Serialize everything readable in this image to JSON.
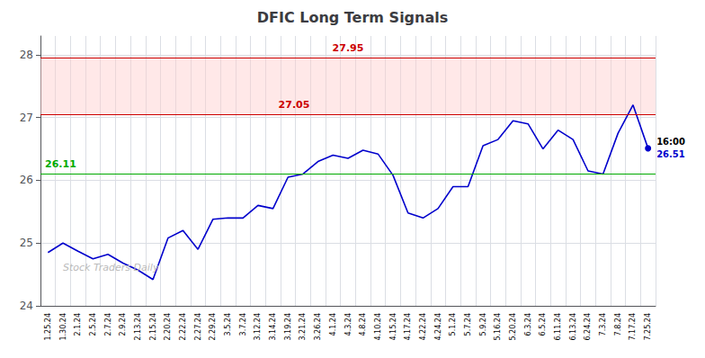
{
  "chart_data": {
    "type": "line",
    "title": "DFIC Long Term Signals",
    "categories": [
      "1.25.24",
      "1.30.24",
      "2.1.24",
      "2.5.24",
      "2.7.24",
      "2.9.24",
      "2.13.24",
      "2.15.24",
      "2.20.24",
      "2.22.24",
      "2.27.24",
      "2.29.24",
      "3.5.24",
      "3.7.24",
      "3.12.24",
      "3.14.24",
      "3.19.24",
      "3.21.24",
      "3.26.24",
      "4.1.24",
      "4.3.24",
      "4.8.24",
      "4.10.24",
      "4.15.24",
      "4.17.24",
      "4.22.24",
      "4.24.24",
      "5.1.24",
      "5.7.24",
      "5.9.24",
      "5.16.24",
      "5.20.24",
      "6.3.24",
      "6.5.24",
      "6.11.24",
      "6.13.24",
      "6.24.24",
      "7.3.24",
      "7.8.24",
      "7.17.24",
      "7.25.24"
    ],
    "values": [
      24.85,
      25.0,
      24.87,
      24.75,
      24.82,
      24.68,
      24.57,
      24.42,
      25.08,
      25.2,
      24.9,
      25.38,
      25.4,
      25.4,
      25.6,
      25.55,
      26.05,
      26.1,
      26.3,
      26.4,
      26.35,
      26.48,
      26.42,
      26.08,
      25.48,
      25.4,
      25.55,
      25.9,
      25.9,
      26.55,
      26.65,
      26.95,
      26.9,
      26.5,
      26.8,
      26.65,
      26.15,
      26.1,
      26.75,
      27.2,
      26.51
    ],
    "color": "#0000cc",
    "ylim": [
      24.0,
      28.3
    ],
    "yticks": [
      24,
      25,
      26,
      27,
      28
    ],
    "grid": true,
    "reference_lines": [
      {
        "value": 27.95,
        "label": "27.95",
        "color": "#cc0000"
      },
      {
        "value": 27.05,
        "label": "27.05",
        "color": "#cc0000"
      },
      {
        "value": 26.11,
        "label": "26.11",
        "color": "#00aa00"
      }
    ],
    "bands": [
      {
        "from": 27.05,
        "to": 27.95,
        "color": "#ffcccc"
      }
    ],
    "annotations": [
      {
        "text": "16:00",
        "x": "7.25.24"
      },
      {
        "text": "26.51",
        "x": "7.25.24",
        "y": 26.51,
        "color": "#0000cc",
        "marker": "circle"
      },
      {
        "text": "Stock Traders Daily"
      }
    ]
  }
}
